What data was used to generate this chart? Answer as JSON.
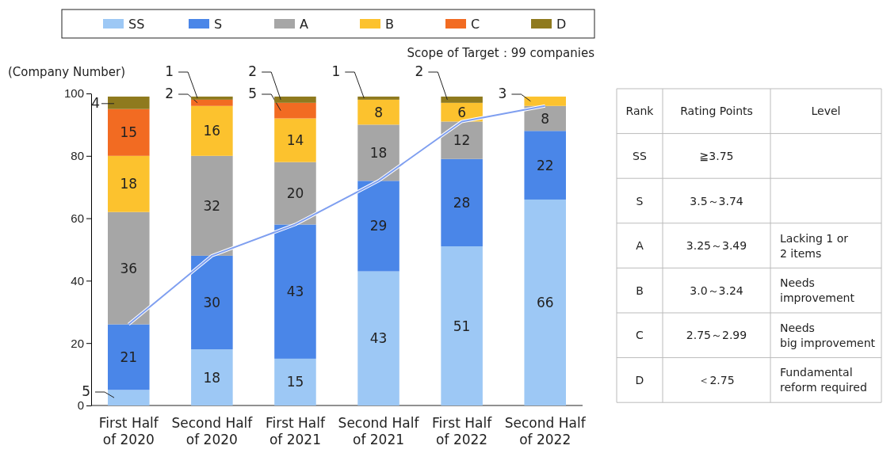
{
  "chart_data": {
    "type": "bar",
    "stacked": true,
    "subtitle": "Scope of Target：99 companies",
    "ylabel": "(Company Number)",
    "categories": [
      "First Half of 2020",
      "Second Half of 2020",
      "First Half of 2021",
      "Second Half of 2021",
      "First Half of 2022",
      "Second Half of 2022"
    ],
    "series": [
      {
        "name": "SS",
        "color": "#9dc8f5",
        "values": [
          5,
          18,
          15,
          43,
          51,
          66
        ]
      },
      {
        "name": "S",
        "color": "#4a86e8",
        "values": [
          21,
          30,
          43,
          29,
          28,
          22
        ]
      },
      {
        "name": "A",
        "color": "#a6a6a6",
        "values": [
          36,
          32,
          20,
          18,
          12,
          8
        ]
      },
      {
        "name": "B",
        "color": "#fcc22e",
        "values": [
          18,
          16,
          14,
          8,
          6,
          3
        ]
      },
      {
        "name": "C",
        "color": "#f26b22",
        "values": [
          15,
          2,
          5,
          null,
          null,
          null
        ]
      },
      {
        "name": "D",
        "color": "#8f7a1e",
        "values": [
          4,
          1,
          2,
          1,
          2,
          null
        ]
      },
      {
        "type": "line",
        "color": "#7f9ff0",
        "values": [
          26,
          48,
          58,
          72,
          91,
          96
        ],
        "value_labels": [
          null,
          null,
          null,
          null,
          null,
          null
        ]
      }
    ],
    "ylim": [
      0,
      100
    ],
    "yticks": [
      0,
      20,
      40,
      60,
      80,
      100
    ],
    "grid": false,
    "legend": "top",
    "data_labels": true,
    "annotations": [
      "Rank",
      "SS",
      "S",
      "A",
      "B",
      "C",
      "D",
      "Rating Points",
      "≧3.75",
      "3.5～3.74",
      "3.25～3.49",
      "3.0～3.24",
      "2.75～2.99",
      "＜2.75",
      "Level",
      "Lacking 1 or 2 items",
      "Needs improvement",
      "Needs big improvement",
      "Fundamental reform required"
    ]
  }
}
